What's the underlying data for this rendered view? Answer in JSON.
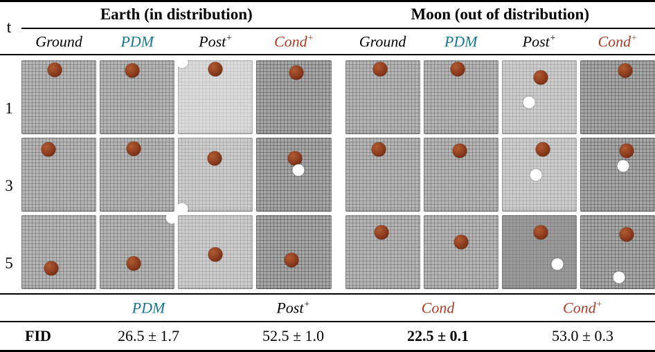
{
  "colors": {
    "pdm": "#17778c",
    "cond": "#a93d26",
    "ball": "#8a3a1d",
    "ball_highlight": "#b05c32",
    "white_ball": "#ffffff"
  },
  "header": {
    "t_label": "t",
    "groups": [
      {
        "title": "Earth (in distribution)"
      },
      {
        "title": "Moon (out of distribution)"
      }
    ],
    "columns": [
      {
        "base": "Ground",
        "sup": "",
        "color": "black"
      },
      {
        "base": "PDM",
        "sup": "",
        "color": "pdm"
      },
      {
        "base": "Post",
        "sup": "+",
        "color": "black"
      },
      {
        "base": "Cond",
        "sup": "+",
        "color": "cond"
      },
      {
        "base": "Ground",
        "sup": "",
        "color": "black"
      },
      {
        "base": "PDM",
        "sup": "",
        "color": "pdm"
      },
      {
        "base": "Post",
        "sup": "+",
        "color": "black"
      },
      {
        "base": "Cond",
        "sup": "+",
        "color": "cond"
      }
    ]
  },
  "grid": {
    "rows": [
      {
        "t": "1",
        "cells": [
          {
            "shade": "med",
            "balls": [
              {
                "kind": "red",
                "x": 44,
                "y": 13
              }
            ]
          },
          {
            "shade": "med",
            "balls": [
              {
                "kind": "red",
                "x": 43,
                "y": 14
              }
            ]
          },
          {
            "shade": "lighter",
            "balls": [
              {
                "kind": "red",
                "x": 50,
                "y": 12
              },
              {
                "kind": "white",
                "x": 5,
                "y": 3
              }
            ]
          },
          {
            "shade": "dark",
            "balls": [
              {
                "kind": "red",
                "x": 53,
                "y": 17
              }
            ]
          },
          {
            "shade": "med",
            "balls": [
              {
                "kind": "red",
                "x": 47,
                "y": 12
              }
            ]
          },
          {
            "shade": "med",
            "balls": [
              {
                "kind": "red",
                "x": 46,
                "y": 12
              }
            ]
          },
          {
            "shade": "light",
            "balls": [
              {
                "kind": "red",
                "x": 52,
                "y": 23
              },
              {
                "kind": "white",
                "x": 36,
                "y": 57
              }
            ]
          },
          {
            "shade": "dark",
            "balls": [
              {
                "kind": "red",
                "x": 60,
                "y": 14
              }
            ]
          }
        ]
      },
      {
        "t": "3",
        "cells": [
          {
            "shade": "med",
            "balls": [
              {
                "kind": "red",
                "x": 36,
                "y": 16
              }
            ]
          },
          {
            "shade": "med",
            "balls": [
              {
                "kind": "red",
                "x": 45,
                "y": 15
              }
            ]
          },
          {
            "shade": "light",
            "balls": [
              {
                "kind": "red",
                "x": 49,
                "y": 28
              },
              {
                "kind": "white",
                "x": 5,
                "y": 96
              }
            ]
          },
          {
            "shade": "dark",
            "balls": [
              {
                "kind": "red",
                "x": 51,
                "y": 28
              },
              {
                "kind": "white",
                "x": 56,
                "y": 44
              }
            ]
          },
          {
            "shade": "med",
            "balls": [
              {
                "kind": "red",
                "x": 45,
                "y": 16
              }
            ]
          },
          {
            "shade": "med",
            "balls": [
              {
                "kind": "red",
                "x": 48,
                "y": 18
              }
            ]
          },
          {
            "shade": "light",
            "balls": [
              {
                "kind": "red",
                "x": 55,
                "y": 16
              },
              {
                "kind": "white",
                "x": 46,
                "y": 50
              }
            ]
          },
          {
            "shade": "dark",
            "balls": [
              {
                "kind": "red",
                "x": 62,
                "y": 18
              },
              {
                "kind": "white",
                "x": 57,
                "y": 38
              }
            ]
          }
        ]
      },
      {
        "t": "5",
        "cells": [
          {
            "shade": "med",
            "balls": [
              {
                "kind": "red",
                "x": 40,
                "y": 72
              }
            ]
          },
          {
            "shade": "med",
            "balls": [
              {
                "kind": "red",
                "x": 45,
                "y": 65
              },
              {
                "kind": "white",
                "x": 96,
                "y": 4
              }
            ]
          },
          {
            "shade": "light",
            "balls": [
              {
                "kind": "red",
                "x": 50,
                "y": 53
              }
            ]
          },
          {
            "shade": "dark",
            "balls": [
              {
                "kind": "red",
                "x": 47,
                "y": 61
              }
            ]
          },
          {
            "shade": "med",
            "balls": [
              {
                "kind": "red",
                "x": 49,
                "y": 23
              }
            ]
          },
          {
            "shade": "med",
            "balls": [
              {
                "kind": "red",
                "x": 50,
                "y": 36
              }
            ]
          },
          {
            "shade": "darker",
            "balls": [
              {
                "kind": "red",
                "x": 52,
                "y": 23
              },
              {
                "kind": "white",
                "x": 74,
                "y": 66
              }
            ]
          },
          {
            "shade": "dark",
            "balls": [
              {
                "kind": "red",
                "x": 62,
                "y": 26
              },
              {
                "kind": "white",
                "x": 52,
                "y": 84
              }
            ]
          }
        ]
      }
    ]
  },
  "fid": {
    "row_label": "FID",
    "columns": [
      {
        "base": "PDM",
        "sup": "",
        "color": "pdm"
      },
      {
        "base": "Post",
        "sup": "+",
        "color": "black"
      },
      {
        "base": "Cond",
        "sup": "",
        "color": "cond"
      },
      {
        "base": "Cond",
        "sup": "+",
        "color": "cond"
      }
    ],
    "values": [
      {
        "text": "26.5 ± 1.7",
        "bold": false
      },
      {
        "text": "52.5 ± 1.0",
        "bold": false
      },
      {
        "text": "22.5 ± 0.1",
        "bold": true
      },
      {
        "text": "53.0 ± 0.3",
        "bold": false
      }
    ]
  }
}
